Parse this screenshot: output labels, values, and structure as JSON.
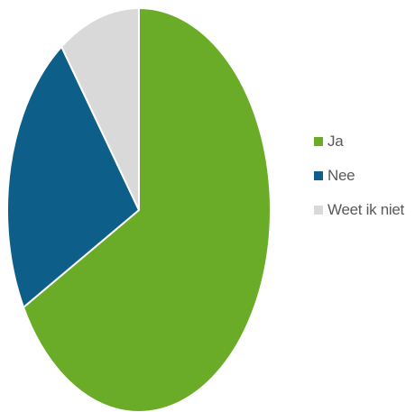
{
  "chart_data": {
    "type": "pie",
    "title": "",
    "start_angle_deg": 0,
    "direction": "clockwise",
    "legend_position": "right",
    "series": [
      {
        "values": [
          {
            "label": "Ja",
            "value": 67,
            "color": "#6aac27"
          },
          {
            "label": "Nee",
            "value": 23,
            "color": "#0d5f8a"
          },
          {
            "label": "Weet ik niet",
            "value": 10,
            "color": "#d9d9d9"
          }
        ]
      }
    ]
  }
}
